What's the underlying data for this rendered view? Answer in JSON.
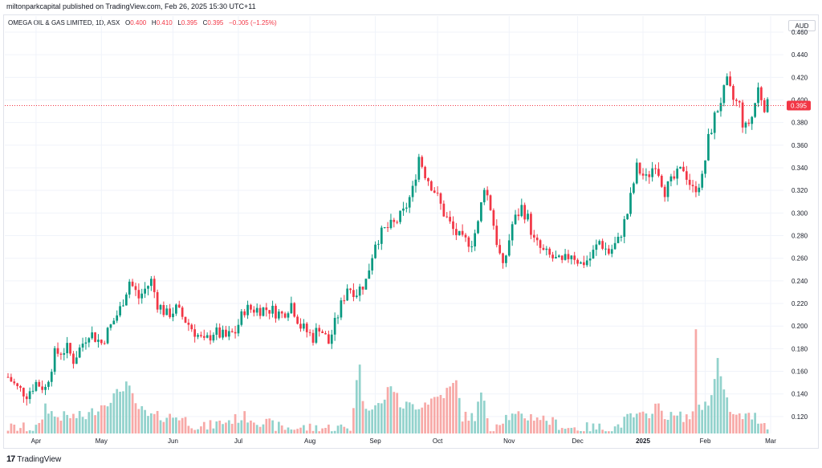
{
  "header": {
    "published": "miltonparkcapital published on TradingView.com, Feb 26, 2025 15:30 UTC+11"
  },
  "legend": {
    "symbol": "OMEGA OIL & GAS LIMITED, 1D, ASX",
    "o_label": "O",
    "o_value": "0.400",
    "h_label": "H",
    "h_value": "0.410",
    "l_label": "L",
    "l_value": "0.395",
    "c_label": "C",
    "c_value": "0.395",
    "change": "−0.005 (−1.25%)"
  },
  "currency": "AUD",
  "last_price_label": "0.395",
  "brand": {
    "logo": "17",
    "name": "TradingView"
  },
  "colors": {
    "up": "#089981",
    "down": "#f23645",
    "vol_up": "#92d2cc",
    "vol_down": "#f7a9a7"
  },
  "chart_data": {
    "type": "candlestick",
    "ylim": [
      0.105,
      0.46
    ],
    "y_ticks": [
      "0.120",
      "0.140",
      "0.160",
      "0.180",
      "0.200",
      "0.220",
      "0.240",
      "0.260",
      "0.280",
      "0.300",
      "0.320",
      "0.340",
      "0.360",
      "0.380",
      "0.400",
      "0.420",
      "0.440",
      "0.460"
    ],
    "x_ticks": [
      {
        "label": "Apr",
        "i": 9
      },
      {
        "label": "May",
        "i": 30
      },
      {
        "label": "Jun",
        "i": 53
      },
      {
        "label": "Jul",
        "i": 74
      },
      {
        "label": "Aug",
        "i": 97
      },
      {
        "label": "Sep",
        "i": 118
      },
      {
        "label": "Oct",
        "i": 138
      },
      {
        "label": "Nov",
        "i": 161
      },
      {
        "label": "Dec",
        "i": 183
      },
      {
        "label": "2025",
        "i": 204
      },
      {
        "label": "Feb",
        "i": 224
      },
      {
        "label": "Mar",
        "i": 245
      }
    ],
    "last_price": 0.395,
    "ohlc_keyframes": [
      [
        0,
        0.155
      ],
      [
        3,
        0.145
      ],
      [
        6,
        0.14
      ],
      [
        9,
        0.15
      ],
      [
        12,
        0.145
      ],
      [
        15,
        0.175
      ],
      [
        19,
        0.18
      ],
      [
        21,
        0.17
      ],
      [
        24,
        0.185
      ],
      [
        26,
        0.195
      ],
      [
        30,
        0.185
      ],
      [
        33,
        0.2
      ],
      [
        36,
        0.215
      ],
      [
        39,
        0.24
      ],
      [
        42,
        0.225
      ],
      [
        46,
        0.24
      ],
      [
        48,
        0.22
      ],
      [
        51,
        0.21
      ],
      [
        54,
        0.215
      ],
      [
        57,
        0.205
      ],
      [
        60,
        0.195
      ],
      [
        63,
        0.185
      ],
      [
        66,
        0.195
      ],
      [
        70,
        0.19
      ],
      [
        73,
        0.195
      ],
      [
        76,
        0.215
      ],
      [
        80,
        0.215
      ],
      [
        84,
        0.215
      ],
      [
        88,
        0.21
      ],
      [
        91,
        0.22
      ],
      [
        94,
        0.2
      ],
      [
        98,
        0.19
      ],
      [
        100,
        0.2
      ],
      [
        103,
        0.185
      ],
      [
        106,
        0.21
      ],
      [
        109,
        0.235
      ],
      [
        112,
        0.23
      ],
      [
        115,
        0.24
      ],
      [
        118,
        0.275
      ],
      [
        121,
        0.285
      ],
      [
        124,
        0.29
      ],
      [
        127,
        0.3
      ],
      [
        130,
        0.32
      ],
      [
        132,
        0.35
      ],
      [
        134,
        0.335
      ],
      [
        137,
        0.32
      ],
      [
        140,
        0.3
      ],
      [
        143,
        0.285
      ],
      [
        146,
        0.275
      ],
      [
        149,
        0.275
      ],
      [
        151,
        0.29
      ],
      [
        153,
        0.325
      ],
      [
        155,
        0.305
      ],
      [
        157,
        0.275
      ],
      [
        159,
        0.25
      ],
      [
        162,
        0.29
      ],
      [
        165,
        0.305
      ],
      [
        167,
        0.295
      ],
      [
        169,
        0.275
      ],
      [
        172,
        0.265
      ],
      [
        175,
        0.26
      ],
      [
        178,
        0.255
      ],
      [
        181,
        0.265
      ],
      [
        184,
        0.255
      ],
      [
        187,
        0.26
      ],
      [
        190,
        0.275
      ],
      [
        193,
        0.265
      ],
      [
        196,
        0.275
      ],
      [
        199,
        0.3
      ],
      [
        202,
        0.34
      ],
      [
        205,
        0.33
      ],
      [
        208,
        0.345
      ],
      [
        211,
        0.32
      ],
      [
        214,
        0.33
      ],
      [
        217,
        0.34
      ],
      [
        220,
        0.32
      ],
      [
        223,
        0.33
      ],
      [
        225,
        0.365
      ],
      [
        227,
        0.385
      ],
      [
        229,
        0.4
      ],
      [
        231,
        0.415
      ],
      [
        233,
        0.4
      ],
      [
        235,
        0.395
      ],
      [
        236,
        0.38
      ],
      [
        237,
        0.375
      ],
      [
        239,
        0.385
      ],
      [
        241,
        0.41
      ],
      [
        243,
        0.395
      ]
    ],
    "volume_keyframes": [
      [
        0,
        0.11
      ],
      [
        10,
        0.11
      ],
      [
        12,
        0.13
      ],
      [
        15,
        0.12
      ],
      [
        25,
        0.12
      ],
      [
        35,
        0.14
      ],
      [
        38,
        0.15
      ],
      [
        41,
        0.13
      ],
      [
        45,
        0.12
      ],
      [
        55,
        0.12
      ],
      [
        62,
        0.11
      ],
      [
        76,
        0.12
      ],
      [
        88,
        0.11
      ],
      [
        110,
        0.11
      ],
      [
        113,
        0.17
      ],
      [
        114,
        0.13
      ],
      [
        120,
        0.13
      ],
      [
        123,
        0.15
      ],
      [
        126,
        0.13
      ],
      [
        132,
        0.13
      ],
      [
        140,
        0.14
      ],
      [
        144,
        0.15
      ],
      [
        146,
        0.12
      ],
      [
        150,
        0.12
      ],
      [
        152,
        0.14
      ],
      [
        155,
        0.11
      ],
      [
        160,
        0.12
      ],
      [
        170,
        0.12
      ],
      [
        180,
        0.11
      ],
      [
        195,
        0.11
      ],
      [
        200,
        0.12
      ],
      [
        205,
        0.12
      ],
      [
        208,
        0.13
      ],
      [
        212,
        0.12
      ],
      [
        220,
        0.12
      ],
      [
        221,
        0.2
      ],
      [
        222,
        0.13
      ],
      [
        225,
        0.13
      ],
      [
        228,
        0.17
      ],
      [
        230,
        0.14
      ],
      [
        233,
        0.12
      ],
      [
        240,
        0.12
      ],
      [
        245,
        0.11
      ]
    ],
    "n_bars": 245
  }
}
